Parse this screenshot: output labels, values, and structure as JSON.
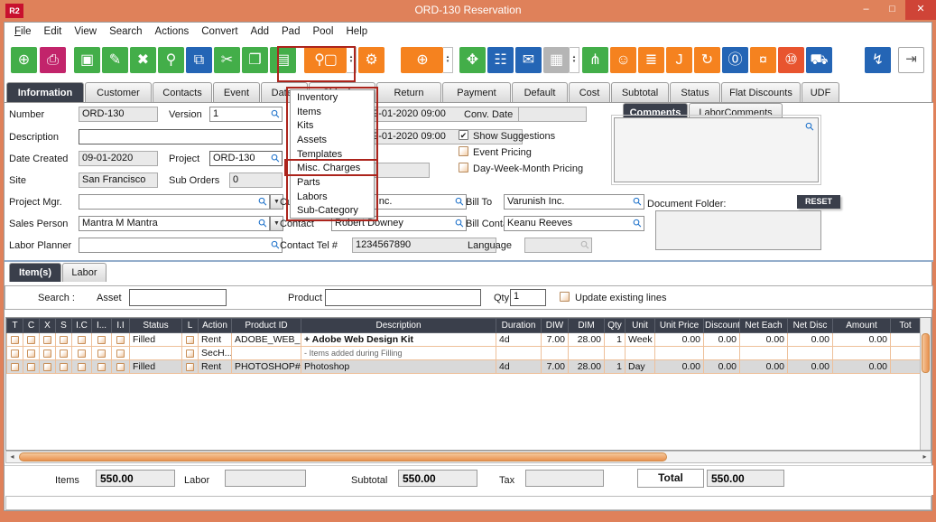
{
  "colors": {
    "frame": "#df815a",
    "green": "#43ae49",
    "orange": "#f5821f",
    "blue": "#2465b5",
    "magenta": "#c2246b",
    "red": "#e8542f",
    "dark_slate": "#3a3f4b",
    "annotation": "#ac241c"
  },
  "icons": {
    "magnifier": "⚲",
    "dropdown_arrow": "▼",
    "spin_up": "▴",
    "spin_down": "▾",
    "check": "✔",
    "scroll_left": "◂",
    "scroll_right": "▸"
  },
  "window": {
    "logo": "R2",
    "title": "ORD-130 Reservation",
    "controls": {
      "minimize": "–",
      "maximize": "□",
      "close": "✕"
    }
  },
  "menubar": {
    "items": [
      "File",
      "Edit",
      "View",
      "Search",
      "Actions",
      "Convert",
      "Add",
      "Pad",
      "Pool",
      "Help"
    ]
  },
  "toolbar": {
    "buttons": [
      {
        "name": "new-document-icon",
        "glyph": "⊕",
        "color": "green"
      },
      {
        "name": "print-icon",
        "glyph": "⎙",
        "color": "magenta"
      },
      {
        "name": "save-icon",
        "glyph": "▣",
        "color": "green"
      },
      {
        "name": "edit-icon",
        "glyph": "✎",
        "color": "green"
      },
      {
        "name": "delete-icon",
        "glyph": "✖",
        "color": "green"
      },
      {
        "name": "find-icon",
        "glyph": "⚲",
        "color": "green"
      },
      {
        "name": "copy-number-icon",
        "glyph": "⧉",
        "color": "blue"
      },
      {
        "name": "cut-icon",
        "glyph": "✂",
        "color": "green"
      },
      {
        "name": "copy-icon",
        "glyph": "❐",
        "color": "green"
      },
      {
        "name": "paste-icon",
        "glyph": "▤",
        "color": "green"
      },
      {
        "name": "item-search-icon",
        "glyph": "⚲▢",
        "color": "orange"
      },
      {
        "name": "options-gears-icon",
        "glyph": "⚙",
        "color": "orange"
      },
      {
        "name": "add-purchase-order-icon",
        "glyph": "⊕",
        "color": "orange"
      },
      {
        "name": "expand-icon",
        "glyph": "✥",
        "color": "green"
      },
      {
        "name": "org-chart-icon",
        "glyph": "☷",
        "color": "blue"
      },
      {
        "name": "message-icon",
        "glyph": "✉",
        "color": "blue"
      },
      {
        "name": "calendar-icon",
        "glyph": "▦",
        "color": "gray"
      },
      {
        "name": "hierarchy-icon",
        "glyph": "⋔",
        "color": "green"
      },
      {
        "name": "smiley-icon",
        "glyph": "☺",
        "color": "orange"
      },
      {
        "name": "receipt-icon",
        "glyph": "≣",
        "color": "orange"
      },
      {
        "name": "journal-icon",
        "glyph": "J",
        "color": "orange"
      },
      {
        "name": "refresh-clipboard-icon",
        "glyph": "↻",
        "color": "orange"
      },
      {
        "name": "chat-zero-icon",
        "glyph": "⓪",
        "color": "blue"
      },
      {
        "name": "add-money-icon",
        "glyph": "¤",
        "color": "orange"
      },
      {
        "name": "vault-icon",
        "glyph": "⑩",
        "color": "red"
      },
      {
        "name": "truck-icon",
        "glyph": "⛟",
        "color": "blue"
      },
      {
        "name": "lightning-icon",
        "glyph": "↯",
        "color": "blue"
      },
      {
        "name": "exit-icon",
        "glyph": "⇥",
        "color": "white"
      }
    ]
  },
  "tabs": {
    "active": "Information",
    "items": [
      "Information",
      "Customer",
      "Contacts",
      "Event",
      "Dates",
      "Shipping",
      "Return",
      "Payment",
      "Default",
      "Cost",
      "Subtotal",
      "Status",
      "Flat Discounts",
      "UDF"
    ]
  },
  "dropdown": {
    "highlighted": "Misc. Charges",
    "items": [
      "Inventory",
      "Items",
      "Kits",
      "Assets",
      "Templates",
      "Misc. Charges",
      "Parts",
      "Labors",
      "Sub-Category"
    ]
  },
  "form": {
    "number": {
      "label": "Number",
      "value": "ORD-130"
    },
    "version": {
      "label": "Version",
      "value": "1"
    },
    "description": {
      "label": "Description",
      "value": ""
    },
    "date_created": {
      "label": "Date Created",
      "value": "09-01-2020"
    },
    "project": {
      "label": "Project",
      "value": "ORD-130"
    },
    "site": {
      "label": "Site",
      "value": "San Francisco"
    },
    "sub_orders": {
      "label": "Sub Orders",
      "value": "0"
    },
    "project_mgr": {
      "label": "Project Mgr.",
      "value": ""
    },
    "sales_person": {
      "label": "Sales Person",
      "value": "Mantra M Mantra"
    },
    "labor_planner": {
      "label": "Labor Planner",
      "value": ""
    },
    "out_date": {
      "value": "09-01-2020 09:00"
    },
    "in_date": {
      "value": "09-01-2020 09:00"
    },
    "customer": {
      "label": "Customer",
      "value": "Varunish Inc."
    },
    "contact": {
      "label": "Contact",
      "value": "Robert Downey"
    },
    "contact_tel": {
      "label": "Contact Tel #",
      "value": "1234567890"
    },
    "conv_date": {
      "label": "Conv. Date",
      "value": ""
    },
    "bill_to": {
      "label": "Bill To",
      "value": "Varunish Inc."
    },
    "bill_contact": {
      "label": "Bill Contact",
      "value": "Keanu Reeves"
    },
    "language": {
      "label": "Language",
      "value": ""
    },
    "checkboxes": {
      "show_suggestions": {
        "label": "Show Suggestions",
        "checked": true
      },
      "event_pricing": {
        "label": "Event Pricing",
        "checked": false
      },
      "day_week_month": {
        "label": "Day-Week-Month Pricing",
        "checked": false
      }
    }
  },
  "comments": {
    "tabs": [
      "Comments",
      "LaborComments"
    ],
    "active": "Comments",
    "value": "",
    "document_folder_label": "Document Folder:",
    "reset_label": "RESET"
  },
  "items_section": {
    "tabs": [
      "Item(s)",
      "Labor"
    ],
    "active": "Item(s)",
    "search": {
      "label": "Search :",
      "asset_label": "Asset",
      "asset_value": "",
      "product_label": "Product",
      "product_value": "",
      "qty_label": "Qty",
      "qty_value": "1",
      "update_label": "Update existing lines",
      "update_checked": false
    },
    "grid": {
      "headers": [
        "T",
        "C",
        "X",
        "S",
        "I.C",
        "I...",
        "I.I",
        "Status",
        "L",
        "Action",
        "Product ID",
        "Description",
        "Duration",
        "DIW",
        "DIM",
        "Qty",
        "Unit",
        "Unit Price",
        "Discount",
        "Net Each",
        "Net Disc",
        "Amount",
        "Tot"
      ],
      "rows": [
        {
          "status": "Filled",
          "action": "Rent",
          "product_id": "ADOBE_WEB_...",
          "description": "+ Adobe Web Design Kit",
          "duration": "4d",
          "diw": "7.00",
          "dim": "28.00",
          "qty": "1",
          "unit": "Week",
          "unit_price": "0.00",
          "discount": "0.00",
          "net_each": "0.00",
          "net_disc": "0.00",
          "amount": "0.00",
          "tot": ""
        },
        {
          "status": "",
          "action": "SecH...",
          "product_id": "",
          "description": "- Items added during Filling",
          "duration": "",
          "diw": "",
          "dim": "",
          "qty": "",
          "unit": "",
          "unit_price": "",
          "discount": "",
          "net_each": "",
          "net_disc": "",
          "amount": "",
          "tot": ""
        },
        {
          "status": "Filled",
          "action": "Rent",
          "product_id": "PHOTOSHOP#14",
          "description": "Photoshop",
          "duration": "4d",
          "diw": "7.00",
          "dim": "28.00",
          "qty": "1",
          "unit": "Day",
          "unit_price": "0.00",
          "discount": "0.00",
          "net_each": "0.00",
          "net_disc": "0.00",
          "amount": "0.00",
          "tot": ""
        }
      ]
    }
  },
  "totals": {
    "items_label": "Items",
    "items": "550.00",
    "labor_label": "Labor",
    "labor": "",
    "subtotal_label": "Subtotal",
    "subtotal": "550.00",
    "tax_label": "Tax",
    "tax": "",
    "total_label": "Total",
    "total": "550.00"
  }
}
